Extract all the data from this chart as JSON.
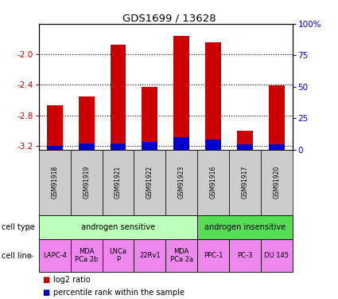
{
  "title": "GDS1699 / 13628",
  "samples": [
    "GSM91918",
    "GSM91919",
    "GSM91921",
    "GSM91922",
    "GSM91923",
    "GSM91916",
    "GSM91917",
    "GSM91920"
  ],
  "log2_ratio": [
    -2.67,
    -2.55,
    -1.87,
    -2.43,
    -1.76,
    -1.84,
    -3.0,
    -2.41
  ],
  "percentile_rank_pct": [
    3,
    5,
    5,
    6,
    10,
    8,
    4,
    4
  ],
  "ylim": [
    -3.25,
    -1.6
  ],
  "yticks": [
    -3.2,
    -2.8,
    -2.4,
    -2.0
  ],
  "right_yticks": [
    0,
    25,
    50,
    75,
    100
  ],
  "bar_color": "#cc0000",
  "blue_color": "#0000cc",
  "cell_types": [
    {
      "label": "androgen sensitive",
      "span": [
        0,
        5
      ],
      "color": "#bbffbb"
    },
    {
      "label": "androgen insensitive",
      "span": [
        5,
        8
      ],
      "color": "#55dd55"
    }
  ],
  "cell_lines": [
    {
      "label": "LAPC-4",
      "span": [
        0,
        1
      ]
    },
    {
      "label": "MDA\nPCa 2b",
      "span": [
        1,
        2
      ]
    },
    {
      "label": "LNCa\nP",
      "span": [
        2,
        3
      ]
    },
    {
      "label": "22Rv1",
      "span": [
        3,
        4
      ]
    },
    {
      "label": "MDA\nPCa 2a",
      "span": [
        4,
        5
      ]
    },
    {
      "label": "PPC-1",
      "span": [
        5,
        6
      ]
    },
    {
      "label": "PC-3",
      "span": [
        6,
        7
      ]
    },
    {
      "label": "DU 145",
      "span": [
        7,
        8
      ]
    }
  ],
  "cell_line_color": "#ee88ee",
  "left_ylabel_color": "#cc0000",
  "right_ylabel_color": "#0000cc",
  "bg_color": "#ffffff",
  "sample_box_color": "#cccccc",
  "bar_width": 0.5
}
